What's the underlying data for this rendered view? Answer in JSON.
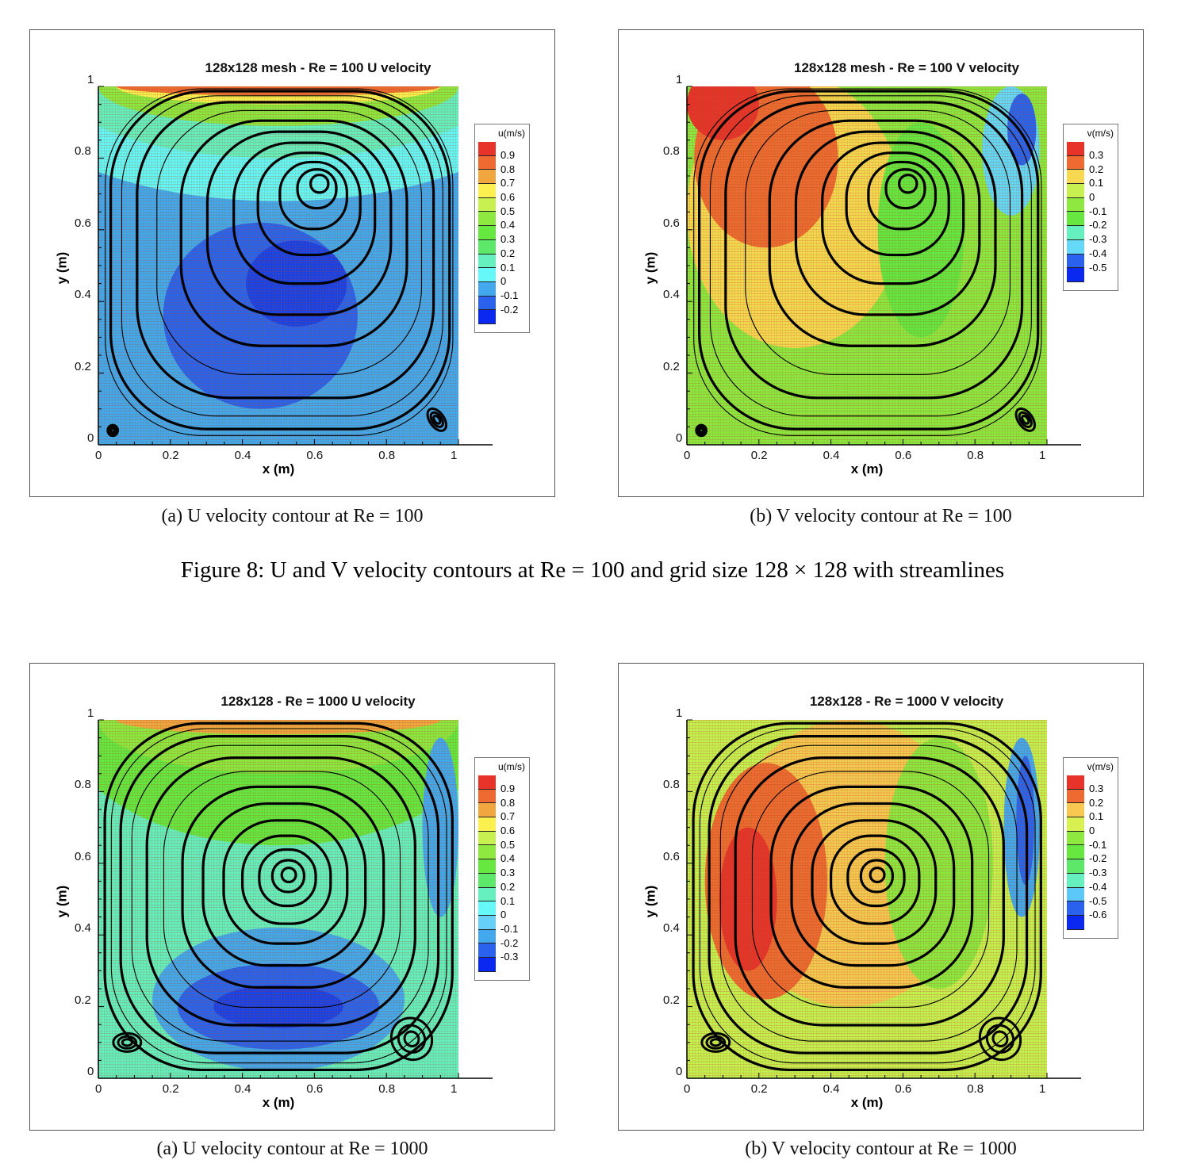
{
  "figure_caption": "Figure 8: U and V velocity contours at Re = 100 and grid size 128 × 128 with streamlines",
  "chart_data": [
    {
      "type": "contour",
      "title": "128x128 mesh - Re = 100 U velocity",
      "caption": "(a) U velocity contour at Re = 100",
      "xlabel": "x (m)",
      "ylabel": "y (m)",
      "xlim": [
        0,
        1
      ],
      "ylim": [
        0,
        1
      ],
      "xticks": [
        "0",
        "0.2",
        "0.4",
        "0.6",
        "0.8",
        "1"
      ],
      "yticks": [
        "0",
        "0.2",
        "0.4",
        "0.6",
        "0.8",
        "1"
      ],
      "legend": {
        "title": "u(m/s)",
        "position": "right",
        "levels": [
          "0.9",
          "0.8",
          "0.7",
          "0.6",
          "0.5",
          "0.4",
          "0.3",
          "0.2",
          "0.1",
          "0",
          "-0.1",
          "-0.2"
        ],
        "colors": [
          "#e8332a",
          "#ee6a30",
          "#f2a640",
          "#fbf050",
          "#c8f050",
          "#8ee840",
          "#66e840",
          "#5ee86a",
          "#66f0c0",
          "#66f8f8",
          "#44a8ee",
          "#2a62ee",
          "#0a28f0"
        ]
      },
      "primary_vortex_center": [
        0.62,
        0.74
      ],
      "secondary_vortices": [
        [
          0.04,
          0.04
        ],
        [
          0.94,
          0.07
        ]
      ],
      "grid": "128x128 mesh"
    },
    {
      "type": "contour",
      "title": "128x128 mesh - Re = 100 V velocity",
      "caption": "(b) V velocity contour at Re = 100",
      "xlabel": "x (m)",
      "ylabel": "y (m)",
      "xlim": [
        0,
        1
      ],
      "ylim": [
        0,
        1
      ],
      "xticks": [
        "0",
        "0.2",
        "0.4",
        "0.6",
        "0.8",
        "1"
      ],
      "yticks": [
        "0",
        "0.2",
        "0.4",
        "0.6",
        "0.8",
        "1"
      ],
      "legend": {
        "title": "v(m/s)",
        "position": "right",
        "levels": [
          "0.3",
          "0.2",
          "0.1",
          "0",
          "-0.1",
          "-0.2",
          "-0.3",
          "-0.4",
          "-0.5"
        ],
        "colors": [
          "#e8332a",
          "#ee6a30",
          "#f8d850",
          "#c8f050",
          "#8ee840",
          "#66e840",
          "#66f0c0",
          "#66d8f8",
          "#2a62ee",
          "#0a28f0"
        ]
      },
      "primary_vortex_center": [
        0.62,
        0.74
      ],
      "secondary_vortices": [
        [
          0.04,
          0.04
        ],
        [
          0.94,
          0.07
        ]
      ],
      "grid": "128x128 mesh"
    },
    {
      "type": "contour",
      "title": "128x128 - Re = 1000 U velocity",
      "caption": "(a) U velocity contour at Re = 1000",
      "xlabel": "x (m)",
      "ylabel": "y (m)",
      "xlim": [
        0,
        1
      ],
      "ylim": [
        0,
        1
      ],
      "xticks": [
        "0",
        "0.2",
        "0.4",
        "0.6",
        "0.8",
        "1"
      ],
      "yticks": [
        "0",
        "0.2",
        "0.4",
        "0.6",
        "0.8",
        "1"
      ],
      "legend": {
        "title": "u(m/s)",
        "position": "right",
        "levels": [
          "0.9",
          "0.8",
          "0.7",
          "0.6",
          "0.5",
          "0.4",
          "0.3",
          "0.2",
          "0.1",
          "0",
          "-0.1",
          "-0.2",
          "-0.3"
        ],
        "colors": [
          "#e8332a",
          "#ee6a30",
          "#f2a640",
          "#fbf050",
          "#c8f050",
          "#8ee840",
          "#66e840",
          "#5ee86a",
          "#66f0c0",
          "#66f8f8",
          "#66d0f8",
          "#44a8ee",
          "#2a62ee",
          "#0a28f0"
        ]
      },
      "primary_vortex_center": [
        0.53,
        0.57
      ],
      "secondary_vortices": [
        [
          0.08,
          0.1
        ],
        [
          0.87,
          0.11
        ]
      ],
      "grid": "128x128"
    },
    {
      "type": "contour",
      "title": "128x128 - Re = 1000 V velocity",
      "caption": "(b) V velocity contour at Re = 1000",
      "xlabel": "x (m)",
      "ylabel": "y (m)",
      "xlim": [
        0,
        1
      ],
      "ylim": [
        0,
        1
      ],
      "xticks": [
        "0",
        "0.2",
        "0.4",
        "0.6",
        "0.8",
        "1"
      ],
      "yticks": [
        "0",
        "0.2",
        "0.4",
        "0.6",
        "0.8",
        "1"
      ],
      "legend": {
        "title": "v(m/s)",
        "position": "right",
        "levels": [
          "0.3",
          "0.2",
          "0.1",
          "0",
          "-0.1",
          "-0.2",
          "-0.3",
          "-0.4",
          "-0.5",
          "-0.6"
        ],
        "colors": [
          "#e8332a",
          "#ee6a30",
          "#f8c850",
          "#d8f050",
          "#8ee840",
          "#66e840",
          "#5ee86a",
          "#66f0c0",
          "#5cc8f8",
          "#2a62ee",
          "#0a28f0"
        ]
      },
      "primary_vortex_center": [
        0.53,
        0.57
      ],
      "secondary_vortices": [
        [
          0.08,
          0.1
        ],
        [
          0.87,
          0.11
        ]
      ],
      "grid": "128x128"
    }
  ]
}
